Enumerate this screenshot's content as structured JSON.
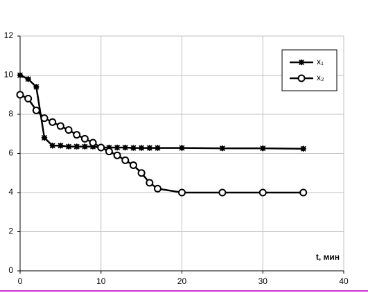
{
  "chart_data": {
    "type": "line",
    "x_label": "t, мин",
    "x": [
      0,
      1,
      2,
      3,
      4,
      5,
      6,
      7,
      8,
      9,
      10,
      11,
      12,
      13,
      14,
      15,
      16,
      17,
      20,
      25,
      30,
      35
    ],
    "series": [
      {
        "name": "x₁",
        "color": "#000000",
        "marker": "star",
        "values": [
          10,
          9.8,
          9.4,
          6.8,
          6.4,
          6.4,
          6.35,
          6.35,
          6.35,
          6.35,
          6.3,
          6.3,
          6.3,
          6.3,
          6.28,
          6.28,
          6.28,
          6.28,
          6.28,
          6.26,
          6.26,
          6.24
        ]
      },
      {
        "name": "x₂",
        "color": "#000000",
        "marker": "circle",
        "values": [
          9,
          8.8,
          8.2,
          7.8,
          7.6,
          7.4,
          7.2,
          6.95,
          6.75,
          6.55,
          6.3,
          6.1,
          5.9,
          5.65,
          5.4,
          5.0,
          4.5,
          4.2,
          4.0,
          4.0,
          4.0,
          4.0
        ]
      }
    ],
    "xlim": [
      0,
      40
    ],
    "xticks": [
      0,
      10,
      20,
      30,
      40
    ],
    "ylim": [
      0,
      12
    ],
    "yticks": [
      0,
      2,
      4,
      6,
      8,
      10,
      12
    ],
    "grid": true,
    "legend": "upper right"
  }
}
